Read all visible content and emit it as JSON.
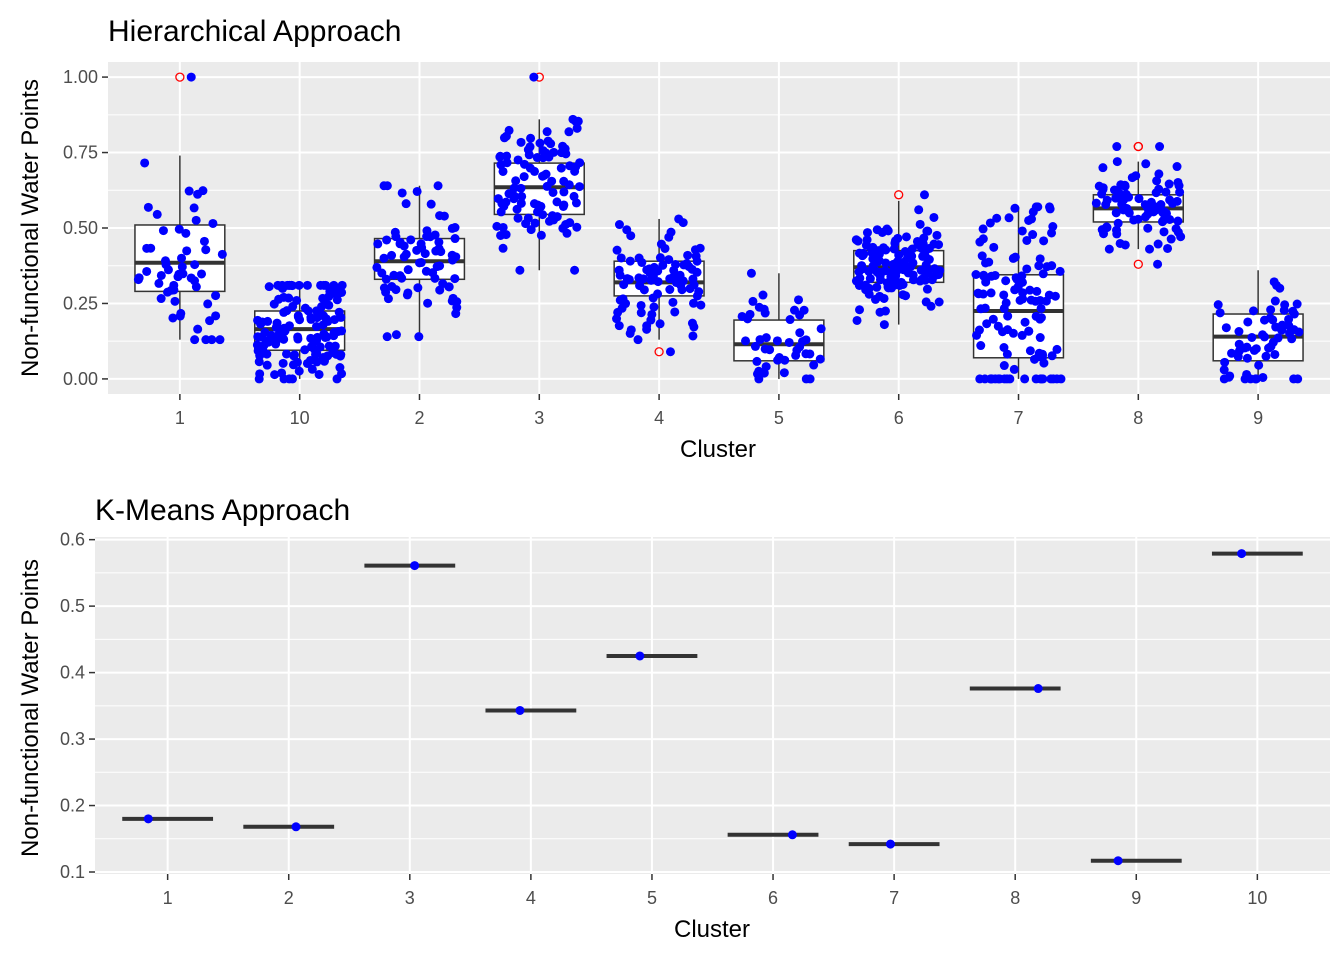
{
  "colors": {
    "panel_bg": "#ebebeb",
    "grid": "#ffffff",
    "point": "#0000ff",
    "outlier": "#ff0000",
    "box_fill": "#ffffff",
    "box_line": "#333333"
  },
  "chart_data": [
    {
      "type": "box",
      "title": "Hierarchical Approach",
      "xlabel": "Cluster",
      "ylabel": "Non-functional Water Points",
      "categories": [
        "1",
        "10",
        "2",
        "3",
        "4",
        "5",
        "6",
        "7",
        "8",
        "9"
      ],
      "ylim": [
        -0.05,
        1.05
      ],
      "yticks": [
        0.0,
        0.25,
        0.5,
        0.75,
        1.0
      ],
      "ytick_labels": [
        "0.00",
        "0.25",
        "0.50",
        "0.75",
        "1.00"
      ],
      "grid": true,
      "jitter_points": true,
      "boxes": [
        {
          "category": "1",
          "whisker_low": 0.13,
          "q1": 0.29,
          "median": 0.385,
          "q3": 0.51,
          "whisker_high": 0.74,
          "outliers": [
            1.0
          ],
          "n": 55
        },
        {
          "category": "10",
          "whisker_low": 0.0,
          "q1": 0.095,
          "median": 0.165,
          "q3": 0.225,
          "whisker_high": 0.31,
          "outliers": [],
          "n": 140
        },
        {
          "category": "2",
          "whisker_low": 0.14,
          "q1": 0.33,
          "median": 0.39,
          "q3": 0.465,
          "whisker_high": 0.64,
          "outliers": [],
          "n": 75
        },
        {
          "category": "3",
          "whisker_low": 0.36,
          "q1": 0.545,
          "median": 0.635,
          "q3": 0.715,
          "whisker_high": 0.86,
          "outliers": [
            1.0
          ],
          "n": 100
        },
        {
          "category": "4",
          "whisker_low": 0.13,
          "q1": 0.275,
          "median": 0.32,
          "q3": 0.39,
          "whisker_high": 0.53,
          "outliers": [
            0.09
          ],
          "n": 90
        },
        {
          "category": "5",
          "whisker_low": 0.0,
          "q1": 0.06,
          "median": 0.115,
          "q3": 0.195,
          "whisker_high": 0.35,
          "outliers": [],
          "n": 45
        },
        {
          "category": "6",
          "whisker_low": 0.18,
          "q1": 0.32,
          "median": 0.37,
          "q3": 0.425,
          "whisker_high": 0.59,
          "outliers": [
            0.61
          ],
          "n": 130
        },
        {
          "category": "7",
          "whisker_low": 0.0,
          "q1": 0.07,
          "median": 0.225,
          "q3": 0.345,
          "whisker_high": 0.57,
          "outliers": [],
          "n": 120
        },
        {
          "category": "8",
          "whisker_low": 0.43,
          "q1": 0.52,
          "median": 0.565,
          "q3": 0.61,
          "whisker_high": 0.72,
          "outliers": [
            0.77,
            0.77,
            0.38
          ],
          "n": 80
        },
        {
          "category": "9",
          "whisker_low": 0.0,
          "q1": 0.06,
          "median": 0.14,
          "q3": 0.215,
          "whisker_high": 0.36,
          "outliers": [],
          "n": 60
        }
      ]
    },
    {
      "type": "box",
      "title": "K-Means Approach",
      "xlabel": "Cluster",
      "ylabel": "Non-functional Water Points",
      "categories": [
        "1",
        "2",
        "3",
        "4",
        "5",
        "6",
        "7",
        "8",
        "9",
        "10"
      ],
      "ylim": [
        0.097,
        0.604
      ],
      "yticks": [
        0.1,
        0.2,
        0.3,
        0.4,
        0.5,
        0.6
      ],
      "ytick_labels": [
        "0.1",
        "0.2",
        "0.3",
        "0.4",
        "0.5",
        "0.6"
      ],
      "grid": true,
      "series": [
        {
          "category": "1",
          "value": 0.18
        },
        {
          "category": "2",
          "value": 0.168
        },
        {
          "category": "3",
          "value": 0.561
        },
        {
          "category": "4",
          "value": 0.343
        },
        {
          "category": "5",
          "value": 0.425
        },
        {
          "category": "6",
          "value": 0.156
        },
        {
          "category": "7",
          "value": 0.142
        },
        {
          "category": "8",
          "value": 0.376
        },
        {
          "category": "9",
          "value": 0.117
        },
        {
          "category": "10",
          "value": 0.579
        }
      ]
    }
  ]
}
